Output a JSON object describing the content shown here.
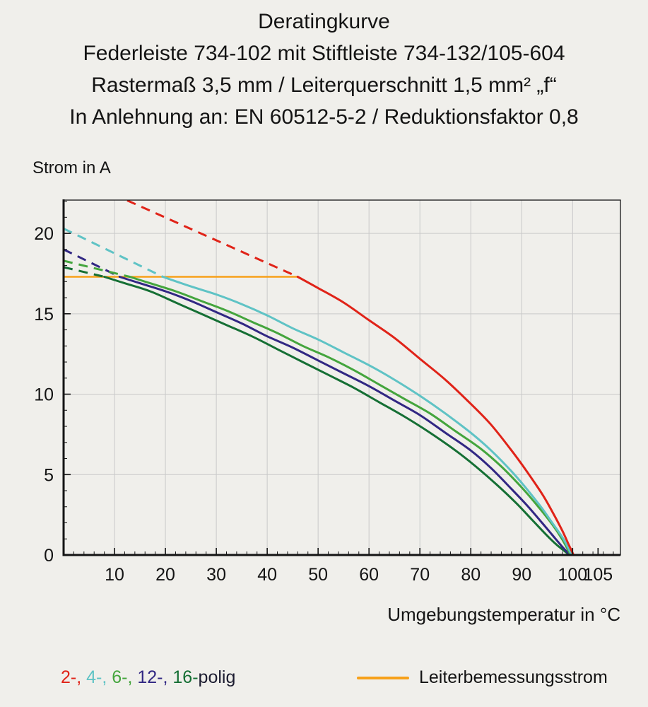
{
  "page": {
    "title": "Deratingkurve",
    "subtitles": [
      "Federleiste 734-102 mit Stiftleiste 734-132/105-604",
      "Rastermaß 3,5 mm / Leiterquerschnitt 1,5 mm² „f“",
      "In Anlehnung an: EN 60512-5-2 / Reduktionsfaktor 0,8"
    ],
    "y_axis_title": "Strom in A",
    "x_axis_title": "Umgebungstemperatur in °C"
  },
  "legend": {
    "poles_parts": [
      {
        "text": "2-, ",
        "color": "#e02318"
      },
      {
        "text": "4-, ",
        "color": "#5fc3c5"
      },
      {
        "text": "6-, ",
        "color": "#44a53d"
      },
      {
        "text": "12-, ",
        "color": "#312783"
      },
      {
        "text": "16-",
        "color": "#156f34"
      },
      {
        "text": "polig",
        "color": "#1c1c30"
      }
    ],
    "rated_label": "Leiterbemessungsstrom",
    "rated_color": "#f7a11a"
  },
  "chart_data": {
    "type": "line",
    "title": "Deratingkurve",
    "xlabel": "Umgebungstemperatur in °C",
    "ylabel": "Strom in A",
    "xlim": [
      0,
      109.4
    ],
    "ylim": [
      0,
      22.07
    ],
    "xticks": [
      10,
      20,
      30,
      40,
      50,
      60,
      70,
      80,
      90,
      100,
      105
    ],
    "yticks": [
      0,
      5,
      10,
      15,
      20
    ],
    "x_gridlines": [
      10,
      20,
      30,
      40,
      50,
      60,
      70,
      80,
      90,
      100
    ],
    "y_gridlines": [
      5,
      10,
      15,
      20
    ],
    "minor_x_step": 2,
    "minor_y_step": 1,
    "grid": true,
    "colors": {
      "grid": "#c9c9c9",
      "axis": "#141414",
      "background": "#f0efeb"
    },
    "rated_current": {
      "label": "Leiterbemessungsstrom",
      "value": 17.3,
      "x_start": 0,
      "x_end": 46,
      "color": "#f7a11a"
    },
    "series": [
      {
        "name": "2-polig",
        "color": "#e02318",
        "dashed": [
          [
            12.5,
            22.05
          ],
          [
            46,
            17.3
          ]
        ],
        "solid": [
          [
            46,
            17.3
          ],
          [
            50,
            16.6
          ],
          [
            55,
            15.7
          ],
          [
            60,
            14.6
          ],
          [
            65,
            13.5
          ],
          [
            70,
            12.2
          ],
          [
            75,
            10.9
          ],
          [
            80,
            9.4
          ],
          [
            84,
            8.1
          ],
          [
            88,
            6.5
          ],
          [
            91,
            5.2
          ],
          [
            94,
            3.8
          ],
          [
            96,
            2.7
          ],
          [
            98,
            1.5
          ],
          [
            99.3,
            0.6
          ],
          [
            100.2,
            0
          ]
        ]
      },
      {
        "name": "4-polig",
        "color": "#5fc3c5",
        "dashed": [
          [
            0,
            20.3
          ],
          [
            19.5,
            17.3
          ]
        ],
        "solid": [
          [
            19.5,
            17.3
          ],
          [
            25,
            16.7
          ],
          [
            30,
            16.2
          ],
          [
            35,
            15.6
          ],
          [
            40,
            14.9
          ],
          [
            45,
            14.1
          ],
          [
            50,
            13.4
          ],
          [
            55,
            12.6
          ],
          [
            60,
            11.8
          ],
          [
            65,
            10.9
          ],
          [
            70,
            9.9
          ],
          [
            75,
            8.8
          ],
          [
            80,
            7.6
          ],
          [
            84,
            6.5
          ],
          [
            88,
            5.2
          ],
          [
            91,
            4.1
          ],
          [
            94,
            2.9
          ],
          [
            96,
            2.0
          ],
          [
            98,
            1.1
          ],
          [
            99.2,
            0.4
          ],
          [
            99.8,
            0
          ]
        ]
      },
      {
        "name": "6-polig",
        "color": "#44a53d",
        "dashed": [
          [
            0,
            18.3
          ],
          [
            13,
            17.3
          ]
        ],
        "solid": [
          [
            13,
            17.3
          ],
          [
            17,
            16.9
          ],
          [
            22,
            16.4
          ],
          [
            27,
            15.8
          ],
          [
            32,
            15.2
          ],
          [
            37,
            14.5
          ],
          [
            42,
            13.8
          ],
          [
            47,
            13.0
          ],
          [
            52,
            12.3
          ],
          [
            57,
            11.5
          ],
          [
            62,
            10.6
          ],
          [
            67,
            9.7
          ],
          [
            72,
            8.8
          ],
          [
            77,
            7.7
          ],
          [
            82,
            6.6
          ],
          [
            86,
            5.5
          ],
          [
            90,
            4.2
          ],
          [
            93,
            3.1
          ],
          [
            96,
            1.9
          ],
          [
            98,
            0.95
          ],
          [
            99.6,
            0
          ]
        ]
      },
      {
        "name": "12-polig",
        "color": "#312783",
        "dashed": [
          [
            0,
            19.0
          ],
          [
            11,
            17.3
          ]
        ],
        "solid": [
          [
            11,
            17.3
          ],
          [
            15,
            16.9
          ],
          [
            20,
            16.4
          ],
          [
            25,
            15.8
          ],
          [
            30,
            15.1
          ],
          [
            35,
            14.4
          ],
          [
            40,
            13.6
          ],
          [
            45,
            12.9
          ],
          [
            50,
            12.1
          ],
          [
            55,
            11.3
          ],
          [
            60,
            10.5
          ],
          [
            65,
            9.6
          ],
          [
            70,
            8.7
          ],
          [
            75,
            7.6
          ],
          [
            80,
            6.5
          ],
          [
            84,
            5.4
          ],
          [
            88,
            4.1
          ],
          [
            91,
            3.1
          ],
          [
            94,
            2.0
          ],
          [
            96,
            1.25
          ],
          [
            98,
            0.5
          ],
          [
            99.5,
            0
          ]
        ]
      },
      {
        "name": "16-polig",
        "color": "#156f34",
        "dashed": [
          [
            0,
            17.9
          ],
          [
            8,
            17.3
          ]
        ],
        "solid": [
          [
            8,
            17.3
          ],
          [
            12,
            16.9
          ],
          [
            17,
            16.4
          ],
          [
            22,
            15.7
          ],
          [
            27,
            15.0
          ],
          [
            32,
            14.3
          ],
          [
            37,
            13.6
          ],
          [
            42,
            12.8
          ],
          [
            47,
            12.0
          ],
          [
            52,
            11.2
          ],
          [
            57,
            10.4
          ],
          [
            62,
            9.5
          ],
          [
            67,
            8.6
          ],
          [
            72,
            7.6
          ],
          [
            77,
            6.5
          ],
          [
            81,
            5.5
          ],
          [
            85,
            4.4
          ],
          [
            89,
            3.2
          ],
          [
            92,
            2.2
          ],
          [
            95,
            1.2
          ],
          [
            97,
            0.6
          ],
          [
            99.4,
            0
          ]
        ]
      }
    ]
  }
}
